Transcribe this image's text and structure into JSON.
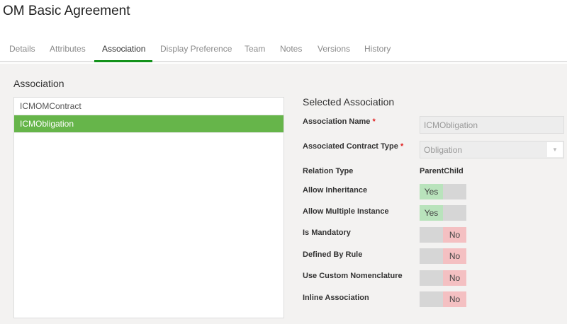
{
  "title": "OM Basic Agreement",
  "tabs": [
    "Details",
    "Attributes",
    "Association",
    "Display Preference",
    "Team",
    "Notes",
    "Versions",
    "History"
  ],
  "active_tab": "Association",
  "section_title": "Association",
  "list": [
    "ICMOMContract",
    "ICMObligation"
  ],
  "selected_item": "ICMObligation",
  "detail": {
    "title": "Selected Association",
    "association_name_label": "Association Name",
    "association_name_value": "ICMObligation",
    "contract_type_label": "Associated Contract Type",
    "contract_type_value": "Obligation",
    "required_mark": "*",
    "relation_type_label": "Relation Type",
    "relation_type_value": "ParentChild",
    "toggles": [
      {
        "label": "Allow Inheritance",
        "value": "Yes"
      },
      {
        "label": "Allow Multiple Instance",
        "value": "Yes"
      },
      {
        "label": "Is Mandatory",
        "value": "No"
      },
      {
        "label": "Defined By Rule",
        "value": "No"
      },
      {
        "label": "Use Custom Nomenclature",
        "value": "No"
      },
      {
        "label": "Inline Association",
        "value": "No"
      }
    ]
  },
  "colors": {
    "accent": "#13921b",
    "selected": "#66b54a",
    "yes": "#b9e3bc",
    "no": "#f4c0c2"
  }
}
